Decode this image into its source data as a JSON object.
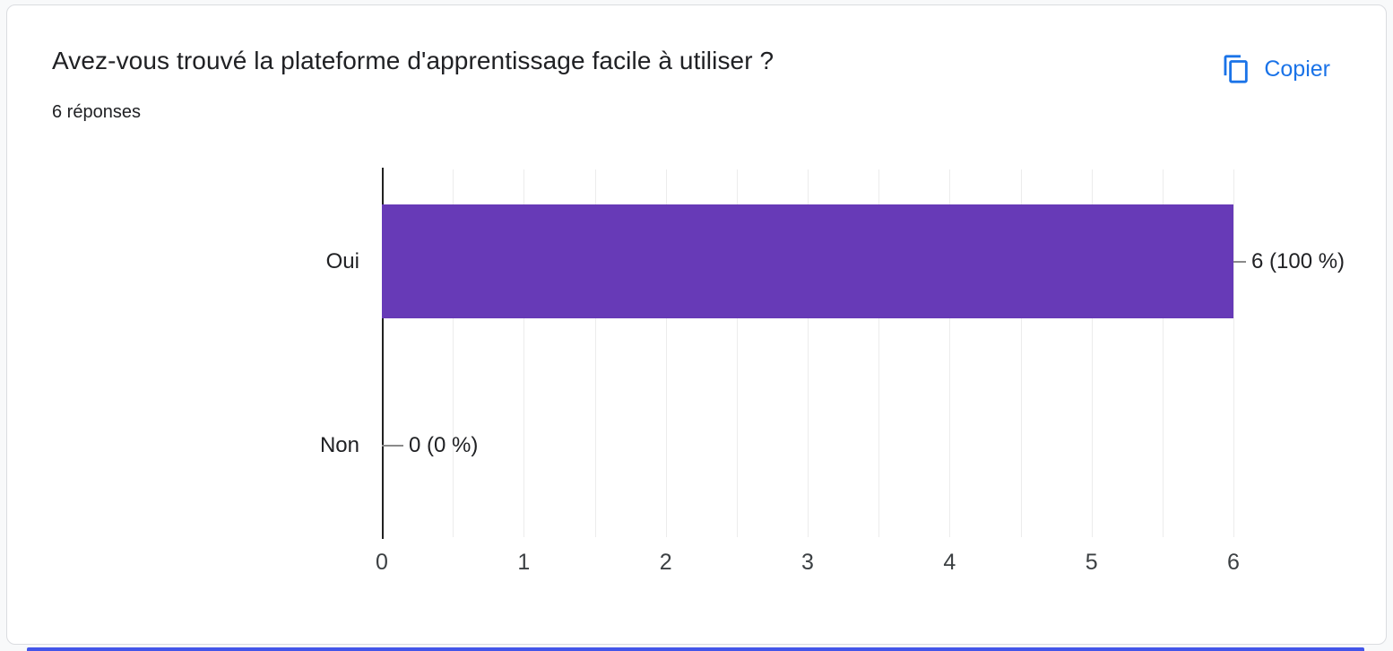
{
  "card": {
    "title": "Avez-vous trouvé la plateforme d'apprentissage facile à utiliser ?",
    "responses": "6 réponses",
    "copy_label": "Copier"
  },
  "colors": {
    "bar": "#673ab7",
    "accent_blue": "#1a73e8",
    "grid": "#ececec",
    "axis": "#212121",
    "text": "#202124",
    "callout": "#8a8a8a",
    "next_card_edge": "#4355e9"
  },
  "chart_data": {
    "type": "bar",
    "orientation": "horizontal",
    "title": "Avez-vous trouvé la plateforme d'apprentissage facile à utiliser ?",
    "categories": [
      "Oui",
      "Non"
    ],
    "values": [
      6,
      0
    ],
    "value_labels": [
      "6 (100 %)",
      "0 (0 %)"
    ],
    "x_ticks": [
      "0",
      "1",
      "2",
      "3",
      "4",
      "5",
      "6"
    ],
    "xlim": [
      0,
      6
    ],
    "grid_step": 0.5,
    "legend": "none",
    "xlabel": "",
    "ylabel": ""
  }
}
